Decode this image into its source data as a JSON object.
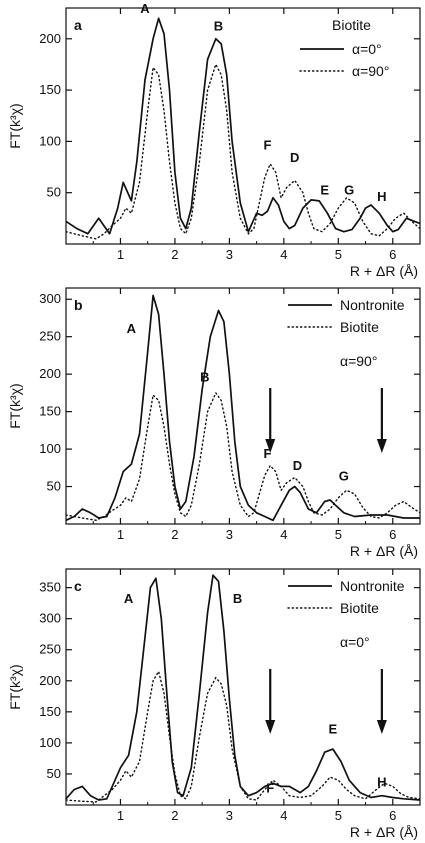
{
  "chart_data": [
    {
      "panel": "a",
      "type": "line",
      "xlim": [
        0,
        6.5
      ],
      "ylim": [
        0,
        230
      ],
      "xticks": [
        1,
        2,
        3,
        4,
        5,
        6
      ],
      "yticks": [
        50,
        100,
        150,
        200
      ],
      "xlabel": "R + ΔR (Å)",
      "ylabel": "FT(k³χ)",
      "legend_title": "Biotite",
      "legend_note": "",
      "peak_labels": [
        {
          "text": "A",
          "x": 1.45,
          "y": 225
        },
        {
          "text": "B",
          "x": 2.8,
          "y": 208
        },
        {
          "text": "F",
          "x": 3.7,
          "y": 92
        },
        {
          "text": "D",
          "x": 4.2,
          "y": 80
        },
        {
          "text": "E",
          "x": 4.75,
          "y": 48
        },
        {
          "text": "G",
          "x": 5.2,
          "y": 48
        },
        {
          "text": "H",
          "x": 5.8,
          "y": 42
        }
      ],
      "arrows_at_x": [],
      "series": [
        {
          "name": "α=0°",
          "style": "solid",
          "x": [
            0,
            0.2,
            0.4,
            0.6,
            0.8,
            0.95,
            1.05,
            1.2,
            1.3,
            1.45,
            1.6,
            1.7,
            1.8,
            1.9,
            2.0,
            2.1,
            2.2,
            2.3,
            2.45,
            2.6,
            2.75,
            2.85,
            2.95,
            3.05,
            3.2,
            3.35,
            3.5,
            3.6,
            3.7,
            3.8,
            3.9,
            4.0,
            4.1,
            4.2,
            4.35,
            4.5,
            4.65,
            4.8,
            4.95,
            5.1,
            5.25,
            5.4,
            5.5,
            5.6,
            5.75,
            5.9,
            6.0,
            6.1,
            6.25,
            6.4,
            6.5
          ],
          "y": [
            22,
            15,
            10,
            25,
            10,
            35,
            60,
            42,
            80,
            160,
            200,
            220,
            205,
            150,
            70,
            25,
            15,
            35,
            110,
            180,
            200,
            195,
            165,
            100,
            40,
            12,
            30,
            28,
            32,
            45,
            38,
            22,
            15,
            18,
            35,
            43,
            42,
            30,
            15,
            12,
            14,
            25,
            35,
            38,
            30,
            18,
            12,
            14,
            25,
            22,
            20
          ]
        },
        {
          "name": "α=90°",
          "style": "dotted",
          "x": [
            0,
            0.3,
            0.55,
            0.7,
            0.85,
            1.0,
            1.1,
            1.2,
            1.35,
            1.5,
            1.6,
            1.7,
            1.8,
            1.9,
            2.0,
            2.1,
            2.2,
            2.3,
            2.45,
            2.6,
            2.75,
            2.85,
            2.95,
            3.05,
            3.2,
            3.35,
            3.45,
            3.55,
            3.65,
            3.75,
            3.85,
            3.95,
            4.05,
            4.2,
            4.35,
            4.45,
            4.55,
            4.7,
            4.85,
            5.0,
            5.15,
            5.3,
            5.45,
            5.6,
            5.75,
            5.9,
            6.05,
            6.2,
            6.35,
            6.5
          ],
          "y": [
            12,
            8,
            5,
            10,
            18,
            25,
            35,
            30,
            60,
            130,
            172,
            165,
            130,
            80,
            40,
            15,
            10,
            25,
            80,
            150,
            175,
            165,
            130,
            70,
            25,
            10,
            15,
            40,
            65,
            78,
            70,
            45,
            55,
            62,
            50,
            30,
            15,
            12,
            20,
            35,
            45,
            40,
            22,
            10,
            8,
            15,
            25,
            30,
            22,
            15
          ]
        }
      ]
    },
    {
      "panel": "b",
      "type": "line",
      "xlim": [
        0,
        6.5
      ],
      "ylim": [
        0,
        315
      ],
      "xticks": [
        1,
        2,
        3,
        4,
        5,
        6
      ],
      "yticks": [
        50,
        100,
        150,
        200,
        250,
        300
      ],
      "xlabel": "R + ΔR (Å)",
      "ylabel": "FT(k³χ)",
      "legend_title": "",
      "legend_note": "α=90°",
      "peak_labels": [
        {
          "text": "A",
          "x": 1.2,
          "y": 255
        },
        {
          "text": "B",
          "x": 2.55,
          "y": 190
        },
        {
          "text": "F",
          "x": 3.7,
          "y": 88
        },
        {
          "text": "D",
          "x": 4.25,
          "y": 72
        },
        {
          "text": "G",
          "x": 5.1,
          "y": 58
        }
      ],
      "arrows_at_x": [
        3.75,
        5.8
      ],
      "series": [
        {
          "name": "Nontronite",
          "style": "solid",
          "x": [
            0,
            0.15,
            0.3,
            0.45,
            0.6,
            0.75,
            0.9,
            1.05,
            1.2,
            1.35,
            1.5,
            1.6,
            1.7,
            1.8,
            1.9,
            2.0,
            2.1,
            2.2,
            2.35,
            2.5,
            2.65,
            2.8,
            2.9,
            3.0,
            3.1,
            3.2,
            3.35,
            3.5,
            3.65,
            3.8,
            3.95,
            4.1,
            4.2,
            4.3,
            4.45,
            4.6,
            4.75,
            4.85,
            4.95,
            5.1,
            5.3,
            5.6,
            5.9,
            6.2,
            6.5
          ],
          "y": [
            5,
            10,
            20,
            15,
            8,
            10,
            35,
            70,
            80,
            120,
            230,
            305,
            280,
            200,
            110,
            50,
            20,
            30,
            90,
            180,
            250,
            285,
            270,
            200,
            110,
            50,
            25,
            15,
            10,
            5,
            25,
            45,
            50,
            42,
            20,
            15,
            30,
            32,
            25,
            15,
            10,
            12,
            12,
            8,
            8
          ]
        },
        {
          "name": "Biotite",
          "style": "dotted",
          "x": [
            0,
            0.3,
            0.55,
            0.7,
            0.85,
            1.0,
            1.1,
            1.2,
            1.35,
            1.5,
            1.6,
            1.7,
            1.8,
            1.9,
            2.0,
            2.1,
            2.2,
            2.3,
            2.45,
            2.6,
            2.75,
            2.85,
            2.95,
            3.05,
            3.2,
            3.35,
            3.45,
            3.55,
            3.65,
            3.75,
            3.85,
            3.95,
            4.05,
            4.2,
            4.35,
            4.45,
            4.55,
            4.7,
            4.85,
            5.0,
            5.15,
            5.3,
            5.45,
            5.6,
            5.75,
            5.9,
            6.05,
            6.2,
            6.35,
            6.5
          ],
          "y": [
            12,
            8,
            5,
            10,
            18,
            25,
            35,
            30,
            60,
            130,
            172,
            165,
            130,
            80,
            40,
            15,
            10,
            25,
            80,
            150,
            175,
            165,
            130,
            70,
            25,
            10,
            15,
            40,
            65,
            78,
            70,
            45,
            55,
            62,
            50,
            30,
            15,
            12,
            20,
            35,
            45,
            40,
            22,
            10,
            8,
            15,
            25,
            30,
            22,
            15
          ]
        }
      ]
    },
    {
      "panel": "c",
      "type": "line",
      "xlim": [
        0,
        6.5
      ],
      "ylim": [
        0,
        380
      ],
      "xticks": [
        1,
        2,
        3,
        4,
        5,
        6
      ],
      "yticks": [
        50,
        100,
        150,
        200,
        250,
        300,
        350
      ],
      "xlabel": "R + ΔR (Å)",
      "ylabel": "FT(k³χ)",
      "legend_title": "",
      "legend_note": "α=0°",
      "peak_labels": [
        {
          "text": "A",
          "x": 1.15,
          "y": 325
        },
        {
          "text": "B",
          "x": 3.15,
          "y": 325
        },
        {
          "text": "F",
          "x": 3.75,
          "y": 20
        },
        {
          "text": "E",
          "x": 4.9,
          "y": 115
        },
        {
          "text": "H",
          "x": 5.8,
          "y": 30
        }
      ],
      "arrows_at_x": [
        3.75,
        5.8
      ],
      "series": [
        {
          "name": "Nontronite",
          "style": "solid",
          "x": [
            0,
            0.15,
            0.3,
            0.45,
            0.6,
            0.75,
            0.9,
            1.0,
            1.15,
            1.3,
            1.45,
            1.55,
            1.65,
            1.75,
            1.85,
            1.95,
            2.05,
            2.15,
            2.3,
            2.45,
            2.6,
            2.7,
            2.8,
            2.9,
            3.0,
            3.1,
            3.2,
            3.35,
            3.5,
            3.65,
            3.8,
            3.95,
            4.1,
            4.3,
            4.45,
            4.6,
            4.75,
            4.9,
            5.05,
            5.2,
            5.4,
            5.6,
            5.8,
            6.0,
            6.2,
            6.5
          ],
          "y": [
            10,
            25,
            30,
            15,
            8,
            10,
            40,
            60,
            80,
            150,
            270,
            350,
            365,
            300,
            180,
            70,
            20,
            15,
            60,
            180,
            310,
            370,
            360,
            280,
            170,
            80,
            30,
            15,
            20,
            30,
            35,
            30,
            30,
            20,
            30,
            55,
            85,
            90,
            70,
            40,
            20,
            12,
            15,
            12,
            10,
            8
          ]
        },
        {
          "name": "Biotite",
          "style": "dotted",
          "x": [
            0,
            0.3,
            0.55,
            0.7,
            0.85,
            1.0,
            1.1,
            1.2,
            1.35,
            1.5,
            1.6,
            1.7,
            1.8,
            1.9,
            2.0,
            2.1,
            2.2,
            2.3,
            2.45,
            2.6,
            2.75,
            2.85,
            2.95,
            3.05,
            3.2,
            3.35,
            3.5,
            3.65,
            3.8,
            3.95,
            4.1,
            4.3,
            4.5,
            4.7,
            4.85,
            5.0,
            5.15,
            5.3,
            5.5,
            5.7,
            5.85,
            6.0,
            6.15,
            6.3,
            6.5
          ],
          "y": [
            8,
            6,
            5,
            15,
            25,
            40,
            55,
            45,
            70,
            150,
            200,
            215,
            180,
            110,
            50,
            15,
            10,
            30,
            110,
            180,
            205,
            195,
            160,
            90,
            30,
            10,
            8,
            25,
            40,
            30,
            15,
            12,
            15,
            30,
            45,
            40,
            25,
            15,
            10,
            25,
            35,
            30,
            18,
            12,
            10
          ]
        }
      ]
    }
  ]
}
